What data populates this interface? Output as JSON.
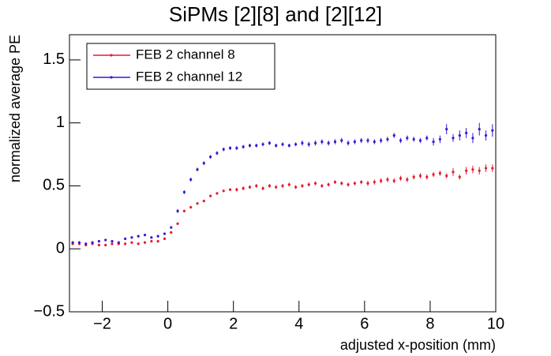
{
  "chart_data": {
    "type": "scatter",
    "title": "SiPMs [2][8] and [2][12]",
    "xlabel": "adjusted x-position (mm)",
    "ylabel": "normalized average PE",
    "xlim": [
      -3,
      10
    ],
    "ylim": [
      -0.5,
      1.7
    ],
    "xticks": [
      {
        "value": -2,
        "label": "−2"
      },
      0,
      2,
      4,
      6,
      8,
      10
    ],
    "yticks": [
      {
        "value": -0.5,
        "label": "−0.5"
      },
      0,
      0.5,
      1,
      1.5
    ],
    "legend": "top-left",
    "x": [
      -2.9,
      -2.7,
      -2.5,
      -2.3,
      -2.1,
      -1.9,
      -1.7,
      -1.5,
      -1.3,
      -1.1,
      -0.9,
      -0.7,
      -0.5,
      -0.3,
      -0.1,
      0.1,
      0.3,
      0.5,
      0.7,
      0.9,
      1.1,
      1.3,
      1.5,
      1.7,
      1.9,
      2.1,
      2.3,
      2.5,
      2.7,
      2.9,
      3.1,
      3.3,
      3.5,
      3.7,
      3.9,
      4.1,
      4.3,
      4.5,
      4.7,
      4.9,
      5.1,
      5.3,
      5.5,
      5.7,
      5.9,
      6.1,
      6.3,
      6.5,
      6.7,
      6.9,
      7.1,
      7.3,
      7.5,
      7.7,
      7.9,
      8.1,
      8.3,
      8.5,
      8.7,
      8.9,
      9.1,
      9.3,
      9.5,
      9.7,
      9.9
    ],
    "series": [
      {
        "name": "FEB 2 channel 8",
        "color": "#e8192c",
        "values": [
          0.04,
          0.04,
          0.03,
          0.04,
          0.03,
          0.03,
          0.04,
          0.04,
          0.04,
          0.05,
          0.04,
          0.05,
          0.06,
          0.06,
          0.08,
          0.13,
          0.2,
          0.3,
          0.33,
          0.36,
          0.38,
          0.42,
          0.44,
          0.46,
          0.47,
          0.47,
          0.48,
          0.49,
          0.5,
          0.48,
          0.5,
          0.49,
          0.5,
          0.51,
          0.49,
          0.5,
          0.51,
          0.52,
          0.5,
          0.51,
          0.53,
          0.52,
          0.51,
          0.52,
          0.53,
          0.52,
          0.53,
          0.54,
          0.55,
          0.54,
          0.56,
          0.55,
          0.57,
          0.58,
          0.57,
          0.59,
          0.6,
          0.58,
          0.61,
          0.57,
          0.62,
          0.63,
          0.62,
          0.64,
          0.64
        ],
        "errors": [
          0.01,
          0.01,
          0.01,
          0.01,
          0.01,
          0.01,
          0.01,
          0.01,
          0.01,
          0.01,
          0.01,
          0.01,
          0.01,
          0.01,
          0.01,
          0.01,
          0.01,
          0.01,
          0.01,
          0.01,
          0.01,
          0.01,
          0.01,
          0.01,
          0.01,
          0.015,
          0.015,
          0.015,
          0.015,
          0.015,
          0.015,
          0.015,
          0.015,
          0.015,
          0.015,
          0.015,
          0.015,
          0.015,
          0.015,
          0.015,
          0.015,
          0.015,
          0.015,
          0.015,
          0.015,
          0.02,
          0.02,
          0.02,
          0.02,
          0.02,
          0.02,
          0.02,
          0.02,
          0.02,
          0.02,
          0.02,
          0.02,
          0.02,
          0.03,
          0.02,
          0.03,
          0.03,
          0.03,
          0.03,
          0.03
        ]
      },
      {
        "name": "FEB 2 channel 12",
        "color": "#3a17d6",
        "values": [
          0.05,
          0.05,
          0.04,
          0.05,
          0.06,
          0.07,
          0.06,
          0.05,
          0.08,
          0.09,
          0.1,
          0.11,
          0.09,
          0.1,
          0.12,
          0.17,
          0.3,
          0.45,
          0.55,
          0.63,
          0.68,
          0.73,
          0.76,
          0.79,
          0.8,
          0.8,
          0.81,
          0.82,
          0.82,
          0.83,
          0.84,
          0.82,
          0.83,
          0.82,
          0.83,
          0.84,
          0.83,
          0.84,
          0.85,
          0.84,
          0.85,
          0.86,
          0.84,
          0.85,
          0.86,
          0.86,
          0.85,
          0.86,
          0.87,
          0.9,
          0.86,
          0.88,
          0.87,
          0.86,
          0.88,
          0.85,
          0.87,
          0.95,
          0.88,
          0.9,
          0.92,
          0.88,
          0.95,
          0.9,
          0.94
        ],
        "errors": [
          0.01,
          0.01,
          0.01,
          0.01,
          0.01,
          0.01,
          0.01,
          0.01,
          0.01,
          0.01,
          0.01,
          0.01,
          0.01,
          0.01,
          0.01,
          0.01,
          0.015,
          0.015,
          0.015,
          0.015,
          0.015,
          0.015,
          0.015,
          0.015,
          0.015,
          0.015,
          0.015,
          0.015,
          0.015,
          0.015,
          0.015,
          0.015,
          0.015,
          0.015,
          0.015,
          0.02,
          0.02,
          0.02,
          0.02,
          0.02,
          0.02,
          0.02,
          0.02,
          0.02,
          0.02,
          0.02,
          0.02,
          0.02,
          0.02,
          0.02,
          0.02,
          0.02,
          0.02,
          0.02,
          0.02,
          0.03,
          0.03,
          0.04,
          0.03,
          0.04,
          0.04,
          0.04,
          0.05,
          0.04,
          0.05
        ]
      }
    ]
  }
}
